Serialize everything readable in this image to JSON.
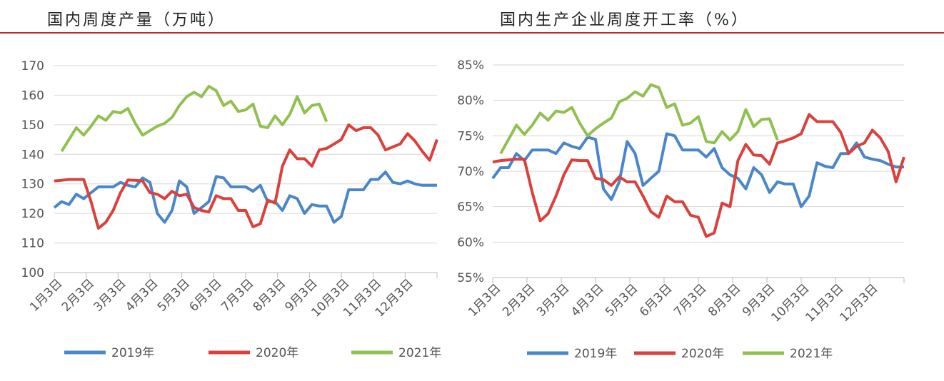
{
  "chart_data": [
    {
      "type": "line",
      "title": "国内周度产量（万吨）",
      "xlabel": "",
      "ylabel": "",
      "ylim": [
        100,
        170
      ],
      "yticks": [
        "100",
        "110",
        "120",
        "130",
        "140",
        "150",
        "160",
        "170"
      ],
      "ytick_values": [
        100,
        110,
        120,
        130,
        140,
        150,
        160,
        170
      ],
      "grid": true,
      "legend": "bottom",
      "x_tick_labels": [
        "1月3日",
        "2月3日",
        "3月3日",
        "4月3日",
        "5月3日",
        "6月3日",
        "7月3日",
        "8月3日",
        "9月3日",
        "10月3日",
        "11月3日",
        "12月3日"
      ],
      "series": [
        {
          "name": "2019年",
          "color": "#4a86c8",
          "values": [
            122,
            124,
            123,
            126.5,
            125,
            127,
            129,
            129,
            129,
            130.5,
            129.5,
            129,
            132,
            130.5,
            120,
            117,
            121,
            131,
            129,
            120,
            122,
            124,
            132.5,
            132,
            129,
            129,
            129,
            127.5,
            129.5,
            124,
            124,
            121,
            126,
            125,
            120,
            123,
            122.5,
            122.5,
            117,
            119,
            128,
            128,
            128,
            131.5,
            131.5,
            134,
            130.5,
            130,
            131,
            130,
            129.5,
            129.5,
            129.5
          ]
        },
        {
          "name": "2020年",
          "color": "#d9413c",
          "values": [
            131,
            131.2,
            131.5,
            131.5,
            131.5,
            124,
            115,
            117,
            121,
            127,
            131.3,
            131.2,
            131,
            127,
            126.5,
            125,
            127.5,
            126,
            126.5,
            122,
            121,
            120.5,
            126,
            125,
            125,
            121,
            121,
            115.5,
            116.5,
            124.5,
            123.5,
            136,
            141.5,
            138.5,
            138.5,
            136,
            141.5,
            142,
            143.5,
            145,
            150,
            148,
            149,
            149,
            146.5,
            141.5,
            142.5,
            143.5,
            147,
            144.5,
            141,
            138,
            145
          ]
        },
        {
          "name": "2021年",
          "color": "#92c050",
          "values": [
            null,
            141,
            145,
            149,
            146.5,
            149.5,
            153,
            151.5,
            154.5,
            154,
            155.5,
            150.5,
            146.5,
            148,
            149.5,
            150.5,
            152.5,
            156.5,
            159.5,
            161,
            159.5,
            163,
            161.5,
            156.5,
            158,
            154.5,
            155,
            157,
            149.5,
            149,
            153,
            150,
            153.5,
            159.5,
            154,
            156.5,
            157,
            151
          ]
        }
      ]
    },
    {
      "type": "line",
      "title": "国内生产企业周度开工率（%）",
      "xlabel": "",
      "ylabel": "",
      "ylim": [
        55,
        85
      ],
      "yticks": [
        "55%",
        "60%",
        "65%",
        "70%",
        "75%",
        "80%",
        "85%"
      ],
      "ytick_values": [
        55,
        60,
        65,
        70,
        75,
        80,
        85
      ],
      "grid": true,
      "legend": "bottom",
      "x_tick_labels": [
        "1月3日",
        "2月3日",
        "3月3日",
        "4月3日",
        "5月3日",
        "6月3日",
        "7月3日",
        "8月3日",
        "9月3日",
        "10月3日",
        "11月3日",
        "12月3日"
      ],
      "series": [
        {
          "name": "2019年",
          "color": "#4a86c8",
          "values": [
            69,
            70.5,
            70.5,
            72.5,
            71.5,
            73,
            73,
            73,
            72.5,
            74,
            73.5,
            73.2,
            74.8,
            74.5,
            67.5,
            66,
            68.5,
            74.2,
            72.5,
            68,
            69,
            70,
            75.3,
            75,
            73,
            73,
            73,
            72,
            73.2,
            70.5,
            69.5,
            69,
            67.5,
            70.5,
            69.5,
            67,
            68.5,
            68.2,
            68.2,
            65,
            66.5,
            71.2,
            70.7,
            70.5,
            72.5,
            72.5,
            74,
            72,
            71.7,
            71.5,
            71,
            70.6,
            70.6
          ]
        },
        {
          "name": "2020年",
          "color": "#d9413c",
          "values": [
            71.3,
            71.5,
            71.6,
            71.7,
            71.7,
            67,
            63,
            64,
            66.5,
            69.5,
            71.6,
            71.5,
            71.5,
            69,
            68.8,
            68,
            69.2,
            68.5,
            68.5,
            66.5,
            64.3,
            63.5,
            66.5,
            65.7,
            65.7,
            63.8,
            63.5,
            60.8,
            61.3,
            65.5,
            65,
            71.5,
            73.8,
            72.3,
            72.2,
            71,
            74,
            74.3,
            74.7,
            75.3,
            78,
            77,
            77,
            77,
            75.5,
            72.5,
            73.5,
            74,
            75.8,
            74.7,
            72.8,
            68.5,
            72
          ]
        },
        {
          "name": "2021年",
          "color": "#92c050",
          "values": [
            null,
            72.5,
            74.5,
            76.5,
            75.2,
            76.5,
            78.2,
            77.2,
            78.5,
            78.3,
            79,
            76.8,
            75,
            76,
            76.8,
            77.5,
            79.8,
            80.3,
            81.2,
            80.6,
            82.2,
            81.8,
            79,
            79.5,
            76.5,
            76.8,
            77.7,
            74.2,
            74,
            75.6,
            74.4,
            75.6,
            78.7,
            76.3,
            77.3,
            77.4,
            74.4
          ]
        }
      ]
    }
  ]
}
